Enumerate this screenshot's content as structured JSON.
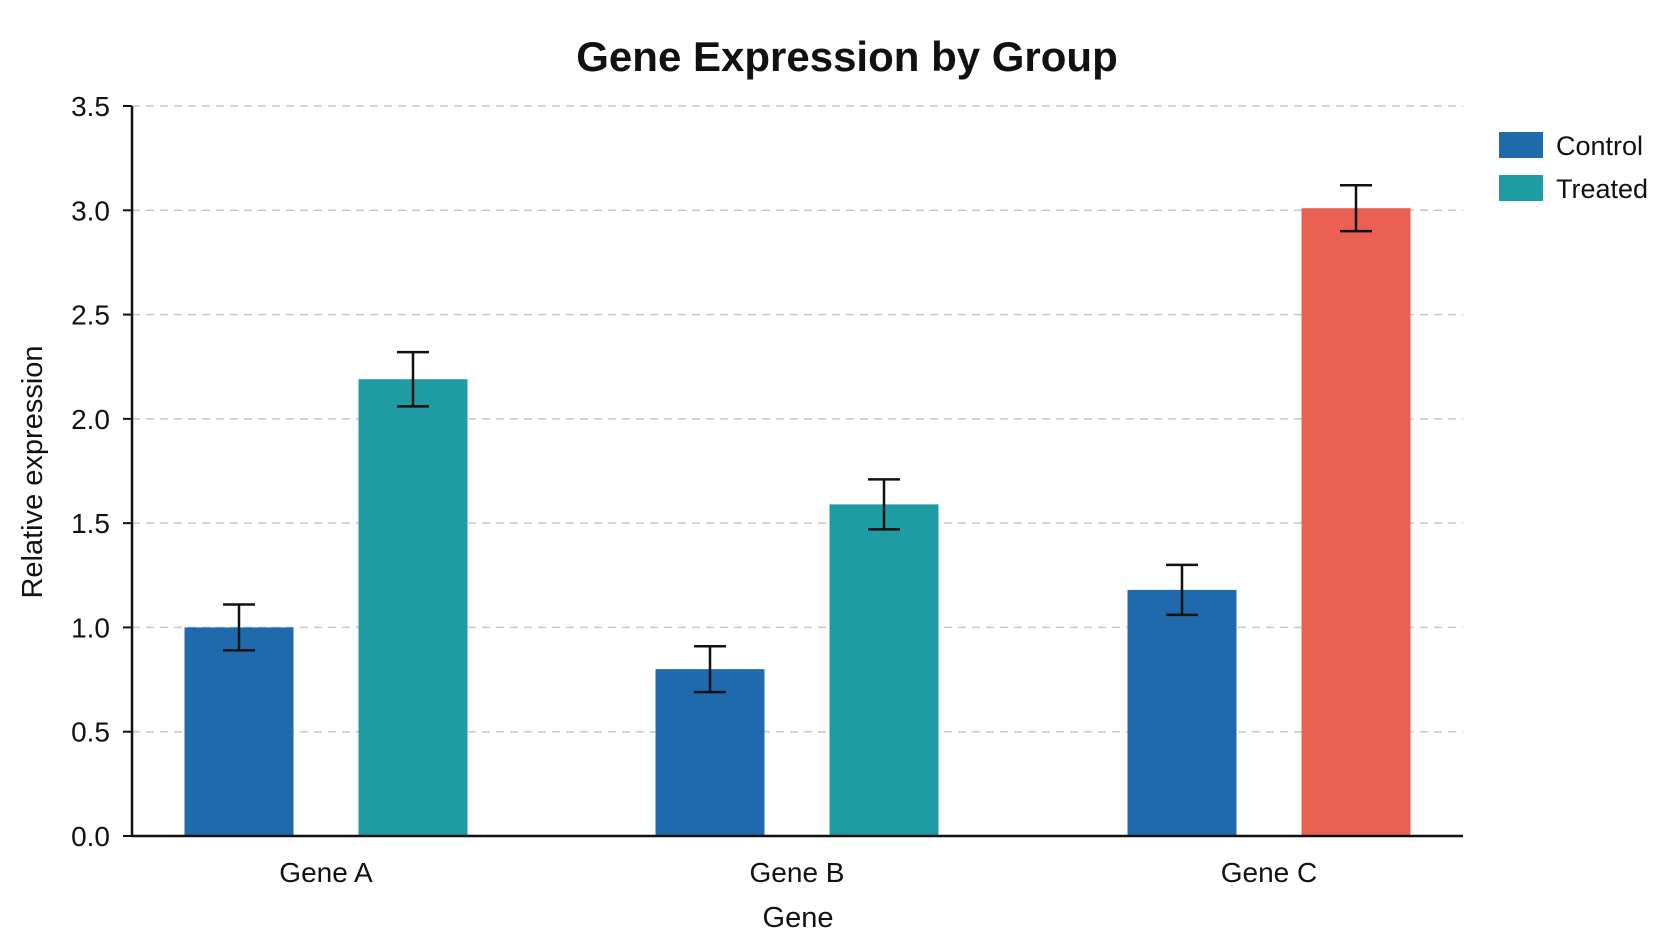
{
  "chart_data": {
    "type": "bar",
    "title": "Gene Expression by Group",
    "xlabel": "Gene",
    "ylabel": "Relative expression",
    "categories": [
      "Gene A",
      "Gene B",
      "Gene C"
    ],
    "ylim": [
      0,
      3.5
    ],
    "yticks": [
      "0.0",
      "0.5",
      "1.0",
      "1.5",
      "2.0",
      "2.5",
      "3.0",
      "3.5"
    ],
    "grid": true,
    "legend_position": "top-right",
    "series": [
      {
        "name": "Control",
        "color": "#1f6aad",
        "values": [
          1.0,
          0.8,
          1.18
        ],
        "errors": [
          0.11,
          0.11,
          0.12
        ],
        "bar_colors": [
          "#1f6aad",
          "#1f6aad",
          "#1f6aad"
        ]
      },
      {
        "name": "Treated",
        "color": "#1e9ba3",
        "values": [
          2.19,
          1.59,
          3.01
        ],
        "errors": [
          0.13,
          0.12,
          0.11
        ],
        "bar_colors": [
          "#1e9ba3",
          "#1e9ba3",
          "#ea6153"
        ]
      }
    ]
  }
}
